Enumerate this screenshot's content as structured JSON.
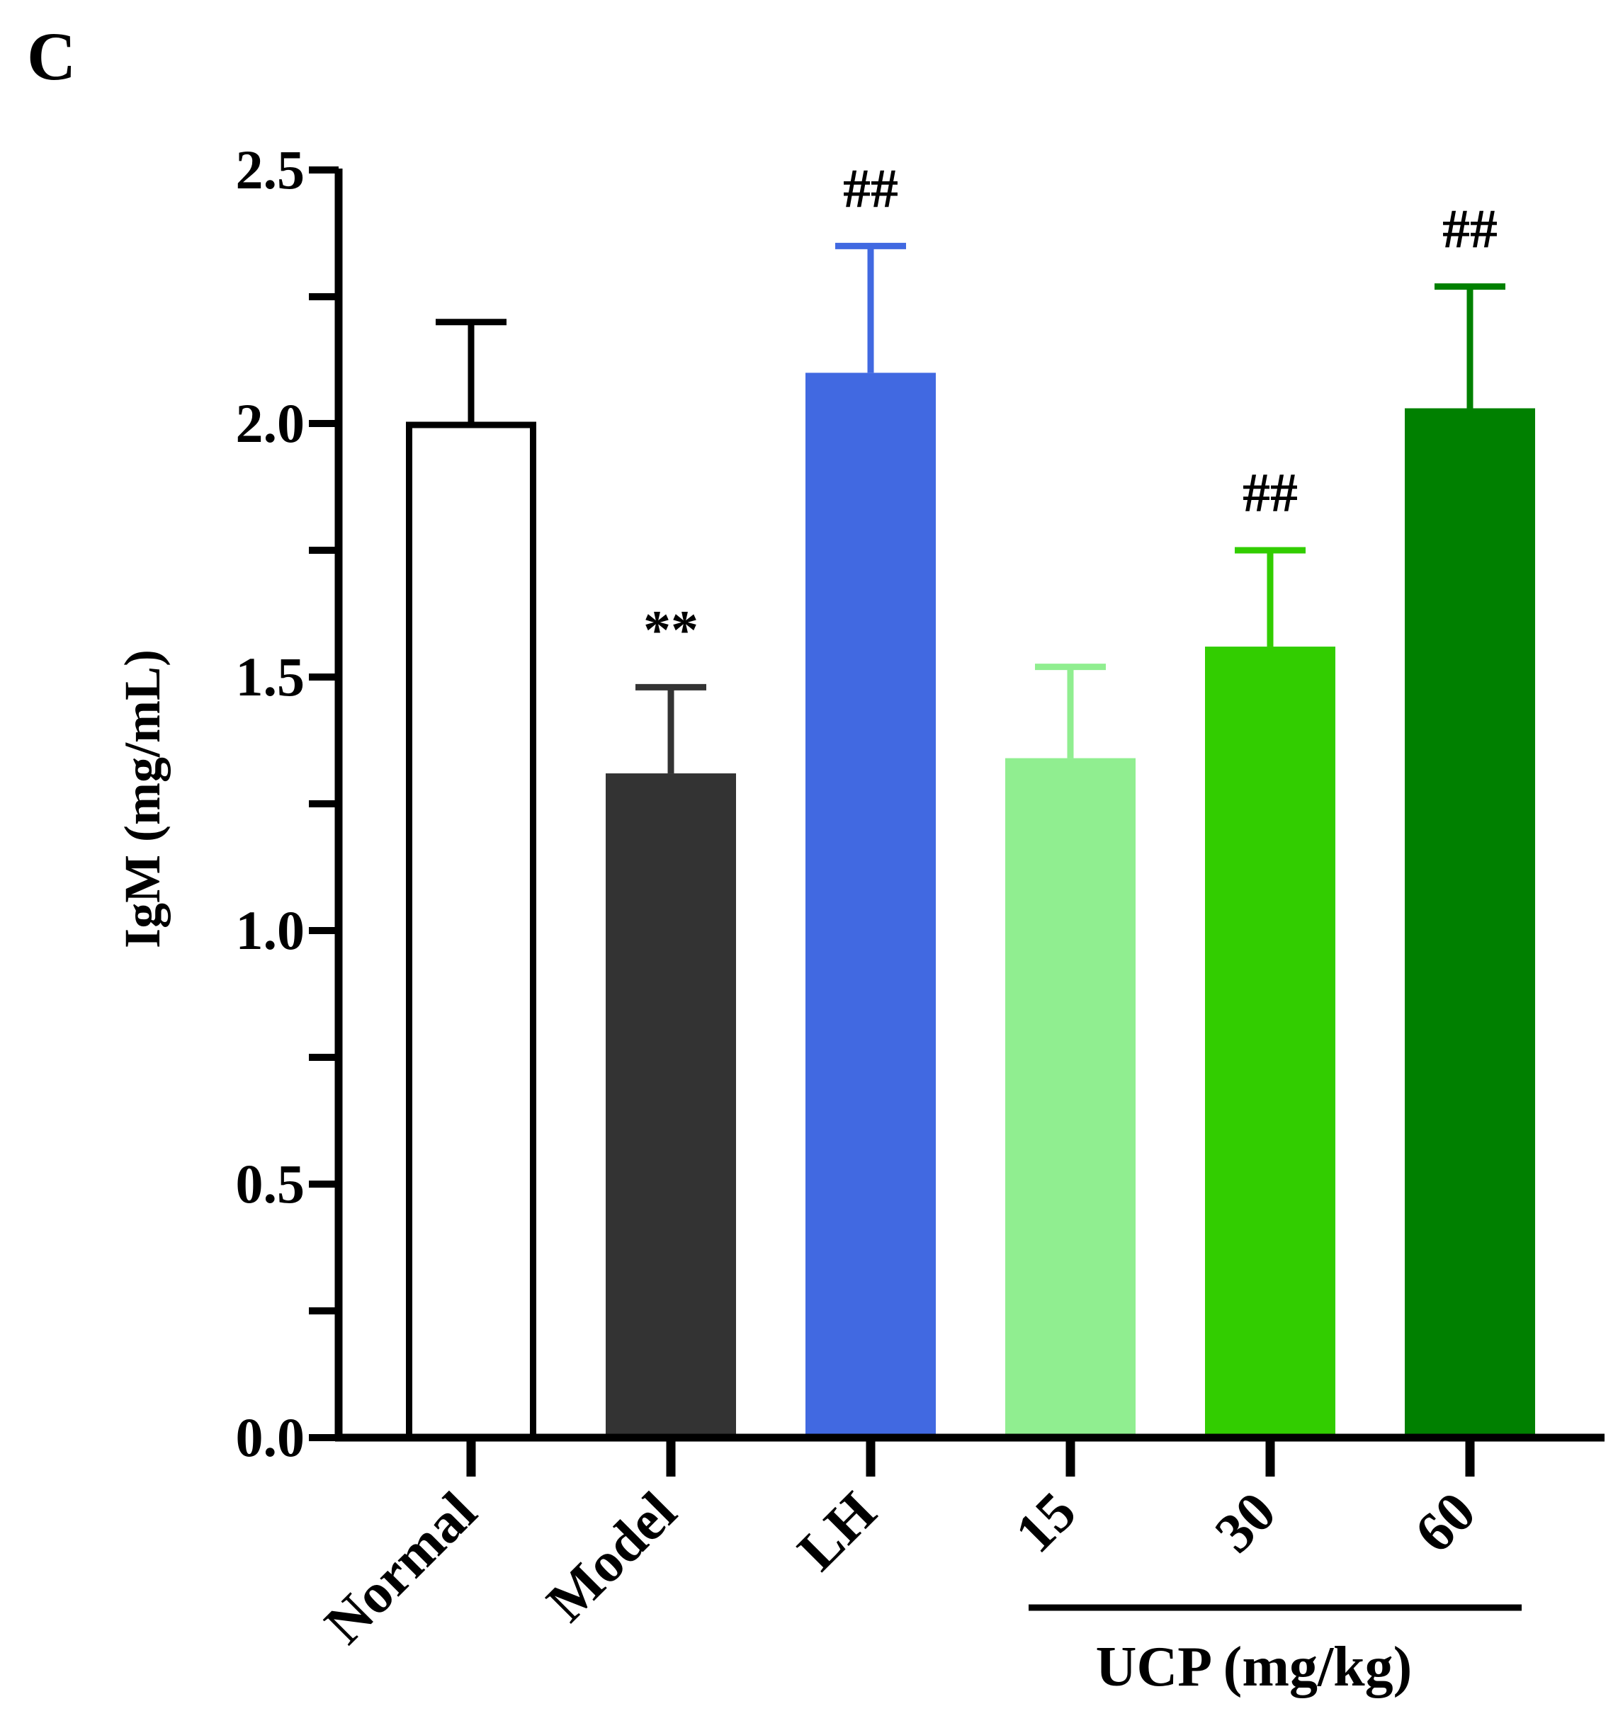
{
  "panel_label": "C",
  "chart_data": {
    "type": "bar",
    "title": "",
    "xlabel": "",
    "ylabel": "IgM (mg/mL)",
    "ylim": [
      0,
      2.5
    ],
    "yticks": [
      "0.0",
      "0.5",
      "1.0",
      "1.5",
      "2.0",
      "2.5"
    ],
    "categories": [
      "Normal",
      "Model",
      "LH",
      "15",
      "30",
      "60"
    ],
    "values": [
      2.0,
      1.31,
      2.1,
      1.34,
      1.56,
      2.03
    ],
    "errors": [
      0.2,
      0.17,
      0.25,
      0.18,
      0.19,
      0.24
    ],
    "annotations": [
      "",
      "**",
      "##",
      "",
      "##",
      "##"
    ],
    "colors": [
      "#ffffff",
      "#333333",
      "#4169e1",
      "#90ee90",
      "#32cd00",
      "#008000"
    ],
    "error_colors": [
      "#000000",
      "#333333",
      "#4169e1",
      "#90ee90",
      "#32cd00",
      "#008000"
    ],
    "group_label": "UCP (mg/kg)"
  }
}
